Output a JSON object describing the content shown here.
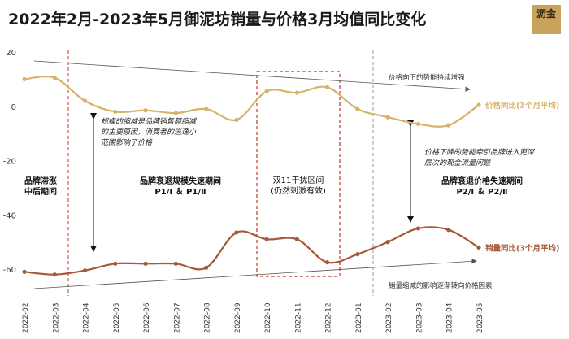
{
  "title": "2022年2月-2023年5月御泥坊销量与价格3月均值同比变化",
  "logo_text": "沥金",
  "colors": {
    "price": "#d6b26a",
    "sales": "#a5583a",
    "dashed": "#c0392b",
    "trend": "#555555",
    "text": "#1a1a1a"
  },
  "chart_data": {
    "type": "line",
    "title": "2022年2月-2023年5月御泥坊销量与价格3月均值同比变化",
    "categories": [
      "2022-02",
      "2022-03",
      "2022-04",
      "2022-05",
      "2022-06",
      "2022-07",
      "2022-08",
      "2022-09",
      "2022-10",
      "2022-11",
      "2022-12",
      "2023-01",
      "2023-02",
      "2023-03",
      "2023-04",
      "2023-05"
    ],
    "ylim": [
      -70,
      20
    ],
    "yticks": [
      20,
      0,
      -20,
      -40,
      -60
    ],
    "yticklabels": [
      "20",
      "0",
      "-20",
      "-40",
      "-60"
    ],
    "grid": false,
    "series": [
      {
        "name": "价格同比(3个月平均)",
        "values": [
          10,
          10.5,
          2,
          -2,
          -1.5,
          -2.5,
          -1,
          -5,
          5.5,
          5,
          7,
          -1,
          -4,
          -6.5,
          -7,
          0.5
        ]
      },
      {
        "name": "销量同比(3个月平均)",
        "values": [
          -61,
          -62,
          -60.5,
          -58,
          -58,
          -58,
          -59.5,
          -46.5,
          -49,
          -49,
          -57.5,
          -54.5,
          -50,
          -45,
          -45.5,
          -52
        ]
      }
    ],
    "annotations": {
      "price_trend": "价格向下的势能持续增强",
      "sales_trend": "销量缩减的影响逐渐转向价格因素",
      "left_note": "规模的缩减是品牌销售额缩减的主要原因，消费者的逃逸小范围影响了价格",
      "right_note": "价格下降的势能牵引品牌进入更深层次的现金流量问题",
      "period1": "品牌滞涨中后期间",
      "period2_title": "品牌衰退规模失速期间",
      "period2_sub": "P1/Ⅰ ＆ P1/Ⅱ",
      "period3_title": "双11干扰区间",
      "period3_sub": "(仍然刺激有效)",
      "period4_title": "品牌衰退价格失速期间",
      "period4_sub": "P2/Ⅰ ＆ P2/Ⅱ"
    }
  }
}
